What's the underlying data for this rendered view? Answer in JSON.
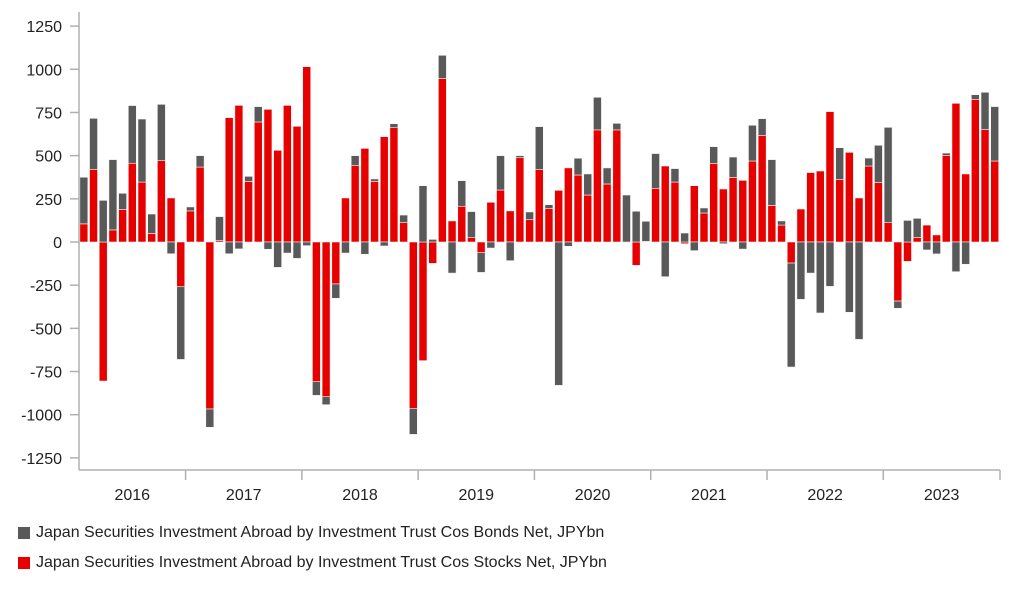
{
  "chart_data": {
    "type": "bar",
    "stacked": true,
    "start_month": "2016-02",
    "year_labels": [
      "2016",
      "2017",
      "2018",
      "2019",
      "2020",
      "2021",
      "2022",
      "2023"
    ],
    "ylim": [
      -1250,
      1250
    ],
    "yticks": [
      -1250,
      -1000,
      -750,
      -500,
      -250,
      0,
      250,
      500,
      750,
      1000,
      1250
    ],
    "grid": false,
    "legend_position": "bottom-left",
    "series": [
      {
        "name": "Japan Securities Investment Abroad by Investment Trust Cos Bonds Net, JPYbn",
        "color": "#595959",
        "values": [
          270,
          297,
          241,
          407,
          93,
          334,
          365,
          112,
          326,
          -68,
          -421,
          23,
          66,
          -106,
          139,
          -68,
          -40,
          29,
          89,
          -42,
          -147,
          -64,
          -95,
          -21,
          -79,
          -46,
          -83,
          -64,
          56,
          -71,
          14,
          -23,
          23,
          44,
          -151,
          326,
          15,
          135,
          -180,
          148,
          151,
          -114,
          -35,
          199,
          -108,
          12,
          45,
          249,
          21,
          -830,
          -25,
          97,
          122,
          189,
          93,
          38,
          272,
          178,
          116,
          201,
          -201,
          78,
          52,
          -50,
          29,
          98,
          -10,
          119,
          -41,
          207,
          98,
          265,
          24,
          -602,
          -332,
          -180,
          -411,
          -257,
          185,
          -407,
          -564,
          46,
          216,
          552,
          -42,
          125,
          110,
          -46,
          -69,
          13,
          -172,
          -129,
          27,
          216,
          315
        ]
      },
      {
        "name": "Japan Securities Investment Abroad by Investment Trust Cos Stocks Net, JPYbn",
        "color": "#e60000",
        "values": [
          105,
          419,
          -805,
          70,
          189,
          456,
          347,
          50,
          471,
          255,
          -259,
          180,
          434,
          -967,
          8,
          720,
          791,
          351,
          695,
          768,
          531,
          791,
          670,
          1015,
          -809,
          -896,
          -243,
          255,
          444,
          542,
          351,
          610,
          662,
          112,
          -963,
          -687,
          -124,
          946,
          122,
          207,
          25,
          -62,
          230,
          301,
          180,
          488,
          129,
          419,
          195,
          299,
          429,
          388,
          272,
          649,
          336,
          649,
          -3,
          -135,
          4,
          311,
          440,
          347,
          -10,
          326,
          168,
          454,
          307,
          373,
          357,
          469,
          616,
          212,
          98,
          -122,
          191,
          402,
          411,
          755,
          361,
          519,
          255,
          440,
          344,
          112,
          -342,
          -112,
          27,
          98,
          41,
          502,
          803,
          394,
          826,
          651,
          469
        ]
      }
    ]
  }
}
